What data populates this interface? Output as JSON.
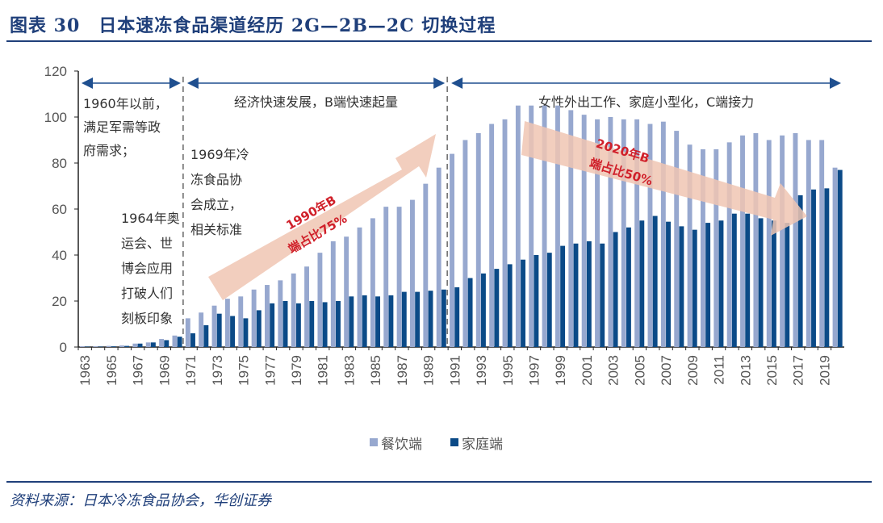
{
  "header": {
    "title": "图表 30　日本速冻食品渠道经历 2G—2B—2C 切换过程"
  },
  "footer": {
    "source": "资料来源：日本冷冻食品协会，华创证券"
  },
  "chart_data": {
    "type": "bar",
    "title": "",
    "xlabel": "",
    "ylabel": "",
    "ylim": [
      0,
      120
    ],
    "yticks": [
      0,
      20,
      40,
      60,
      80,
      100,
      120
    ],
    "grid": false,
    "legend_position": "bottom",
    "categories": [
      1963,
      1964,
      1965,
      1966,
      1967,
      1968,
      1969,
      1970,
      1971,
      1972,
      1973,
      1974,
      1975,
      1976,
      1977,
      1978,
      1979,
      1980,
      1981,
      1982,
      1983,
      1984,
      1985,
      1986,
      1987,
      1988,
      1989,
      1990,
      1991,
      1992,
      1993,
      1994,
      1995,
      1996,
      1997,
      1998,
      1999,
      2000,
      2001,
      2002,
      2003,
      2004,
      2005,
      2006,
      2007,
      2008,
      2009,
      2010,
      2011,
      2012,
      2013,
      2014,
      2015,
      2016,
      2017,
      2018,
      2019,
      2020
    ],
    "series": [
      {
        "name": "餐饮端",
        "color": "#97a8cf",
        "values": [
          0.3,
          0.3,
          0.5,
          0.7,
          1.5,
          2,
          3.5,
          5,
          12.5,
          15,
          18,
          21,
          22,
          25,
          27,
          29,
          32,
          35,
          41,
          46,
          48,
          52,
          56,
          61,
          61,
          64,
          71,
          78,
          84,
          90,
          93,
          97,
          99,
          105,
          105,
          105,
          105,
          103,
          101,
          99,
          100,
          99,
          99,
          97,
          98,
          94,
          88,
          86,
          86,
          89,
          92,
          93,
          90,
          92,
          93,
          90,
          90,
          78
        ]
      },
      {
        "name": "家庭端",
        "color": "#0b4a87",
        "values": [
          0.2,
          0.2,
          0.3,
          0.5,
          1.5,
          2,
          3,
          4.5,
          6,
          9.5,
          14.5,
          13.5,
          12.5,
          16,
          19,
          20,
          19,
          20,
          19.5,
          20,
          22,
          22.5,
          22,
          22.5,
          24,
          24,
          24.5,
          25,
          26,
          30,
          32,
          34,
          36,
          38,
          40,
          41,
          44,
          45,
          46,
          45,
          50,
          52,
          55,
          57,
          54.5,
          52.5,
          51,
          54,
          55,
          58,
          58,
          56,
          55,
          54,
          66,
          68.5,
          69,
          77
        ]
      }
    ],
    "phases": [
      {
        "from": 1963,
        "to": 1970,
        "label": "1960年以前，满足军需等政府需求；"
      },
      {
        "from": 1971,
        "to": 1990,
        "label": "经济快速发展，B端快速起量"
      },
      {
        "from": 1991,
        "to": 2020,
        "label": "女性外出工作、家庭小型化，C端接力"
      }
    ],
    "annotations": {
      "a1964": [
        "1964年奥",
        "运会、世",
        "博会应用",
        "打破人们",
        "刻板印象"
      ],
      "a1969": [
        "1969年冷",
        "冻食品协",
        "会成立，",
        "相关标准"
      ],
      "a1960": [
        "1960年以前，",
        "满足军需等",
        "政府需求；"
      ],
      "arrow_up": [
        "1990年B",
        "端占比75%"
      ],
      "arrow_down": [
        "2020年B",
        "端占比50%"
      ]
    }
  }
}
